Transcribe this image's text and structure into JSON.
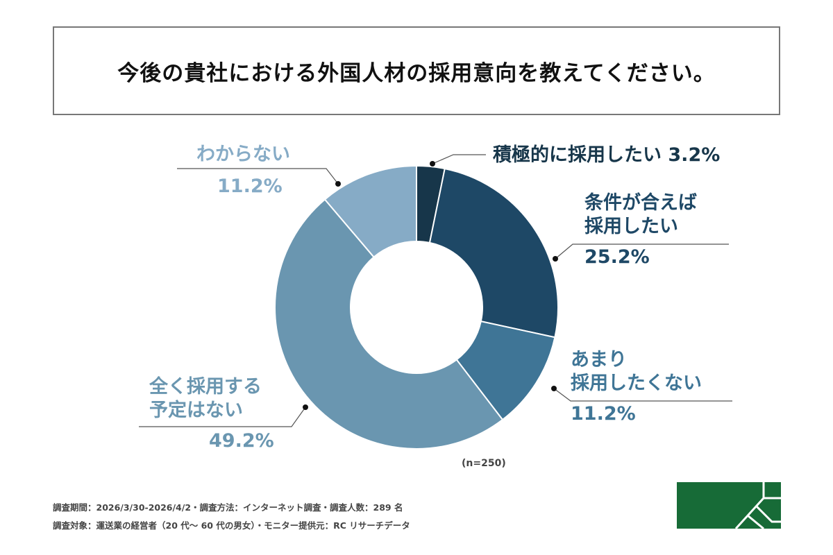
{
  "title": "今後の貴社における外国人材の採用意向を教えてください。",
  "chart_data": {
    "type": "pie",
    "donut": true,
    "title": "今後の貴社における外国人材の採用意向を教えてください。",
    "categories": [
      "積極的に採用したい",
      "条件が合えば採用したい",
      "あまり採用したくない",
      "全く採用する予定はない",
      "わからない"
    ],
    "values": [
      3.2,
      25.2,
      11.2,
      49.2,
      11.2
    ],
    "unit": "%",
    "colors": [
      "#17364a",
      "#1e4866",
      "#3f7596",
      "#6a96b0",
      "#86abc6"
    ],
    "labels": [
      {
        "lines": [
          "積極的に採用したい  3.2%"
        ]
      },
      {
        "lines": [
          "条件が合えば",
          "採用したい"
        ],
        "value": "25.2%"
      },
      {
        "lines": [
          "あまり",
          "採用したくない"
        ],
        "value": "11.2%"
      },
      {
        "lines": [
          "全く採用する",
          "予定はない"
        ],
        "value": "49.2%"
      },
      {
        "lines": [
          "わからない"
        ],
        "value": "11.2%"
      }
    ],
    "sample": "(n=250)"
  },
  "footer": {
    "line1": "調査期間：2026/3/30-2026/4/2・調査方法：インターネット調査・調査人数：289 名",
    "line2": "調査対象：運送業の経営者（20 代～ 60 代の男女）・モニター提供元：RC リサーチデータ"
  },
  "logo_color": "#176b37"
}
